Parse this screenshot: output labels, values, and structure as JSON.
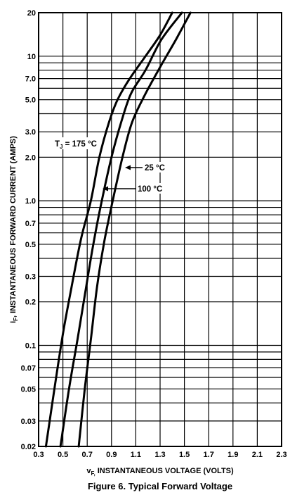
{
  "chart_data": {
    "type": "line",
    "title": "",
    "caption": "Figure 6. Typical Forward Voltage",
    "ylabel": {
      "main": "i",
      "sub": "F",
      "rest": ", INSTANTANEOUS FORWARD CURRENT (AMPS)"
    },
    "xlabel": {
      "main": "v",
      "sub": "F,",
      "rest": " INSTANTANEOUS VOLTAGE (VOLTS)"
    },
    "y_scale": "log",
    "xlim": [
      0.3,
      2.3
    ],
    "ylim": [
      0.02,
      20
    ],
    "grid": true,
    "x_ticks": [
      "0.3",
      "0.5",
      "0.7",
      "0.9",
      "1.1",
      "1.3",
      "1.5",
      "1.7",
      "1.9",
      "2.1",
      "2.3"
    ],
    "y_ticks": [
      {
        "v": 20,
        "label": "20"
      },
      {
        "v": 10,
        "label": "10"
      },
      {
        "v": 7,
        "label": "7.0"
      },
      {
        "v": 5,
        "label": "5.0"
      },
      {
        "v": 3,
        "label": "3.0"
      },
      {
        "v": 2,
        "label": "2.0"
      },
      {
        "v": 1,
        "label": "1.0"
      },
      {
        "v": 0.7,
        "label": "0.7"
      },
      {
        "v": 0.5,
        "label": "0.5"
      },
      {
        "v": 0.3,
        "label": "0.3"
      },
      {
        "v": 0.2,
        "label": "0.2"
      },
      {
        "v": 0.1,
        "label": "0.1"
      },
      {
        "v": 0.07,
        "label": "0.07"
      },
      {
        "v": 0.05,
        "label": "0.05"
      },
      {
        "v": 0.03,
        "label": "0.03"
      },
      {
        "v": 0.02,
        "label": "0.02"
      }
    ],
    "y_grid": [
      0.02,
      0.03,
      0.04,
      0.05,
      0.06,
      0.07,
      0.08,
      0.09,
      0.1,
      0.2,
      0.3,
      0.4,
      0.5,
      0.6,
      0.7,
      0.8,
      0.9,
      1,
      2,
      3,
      4,
      5,
      6,
      7,
      8,
      9,
      10,
      20
    ],
    "series": [
      {
        "label_main": "T",
        "label_sub": "J",
        "label_rest": " = 175 °C",
        "x": [
          0.36,
          0.43,
          0.5,
          0.57,
          0.65,
          0.73,
          0.8,
          0.88,
          0.95,
          1.05,
          1.18,
          1.3,
          1.4
        ],
        "y": [
          0.02,
          0.05,
          0.12,
          0.25,
          0.55,
          1.0,
          2.0,
          3.5,
          5.0,
          7.0,
          10.0,
          14.0,
          20.0
        ]
      },
      {
        "label_main": "",
        "label_sub": "",
        "label_rest": "100 °C",
        "x": [
          0.48,
          0.55,
          0.62,
          0.69,
          0.75,
          0.82,
          0.9,
          0.98,
          1.06,
          1.18,
          1.31,
          1.48
        ],
        "y": [
          0.02,
          0.05,
          0.11,
          0.25,
          0.5,
          1.0,
          2.0,
          3.5,
          5.5,
          8.0,
          13.0,
          20.0
        ]
      },
      {
        "label_main": "",
        "label_sub": "",
        "label_rest": "25 °C",
        "x": [
          0.63,
          0.68,
          0.73,
          0.78,
          0.84,
          0.91,
          0.99,
          1.07,
          1.18,
          1.32,
          1.43,
          1.55
        ],
        "y": [
          0.02,
          0.05,
          0.11,
          0.25,
          0.52,
          1.0,
          2.0,
          3.5,
          5.5,
          9.0,
          13.0,
          20.0
        ]
      }
    ]
  }
}
